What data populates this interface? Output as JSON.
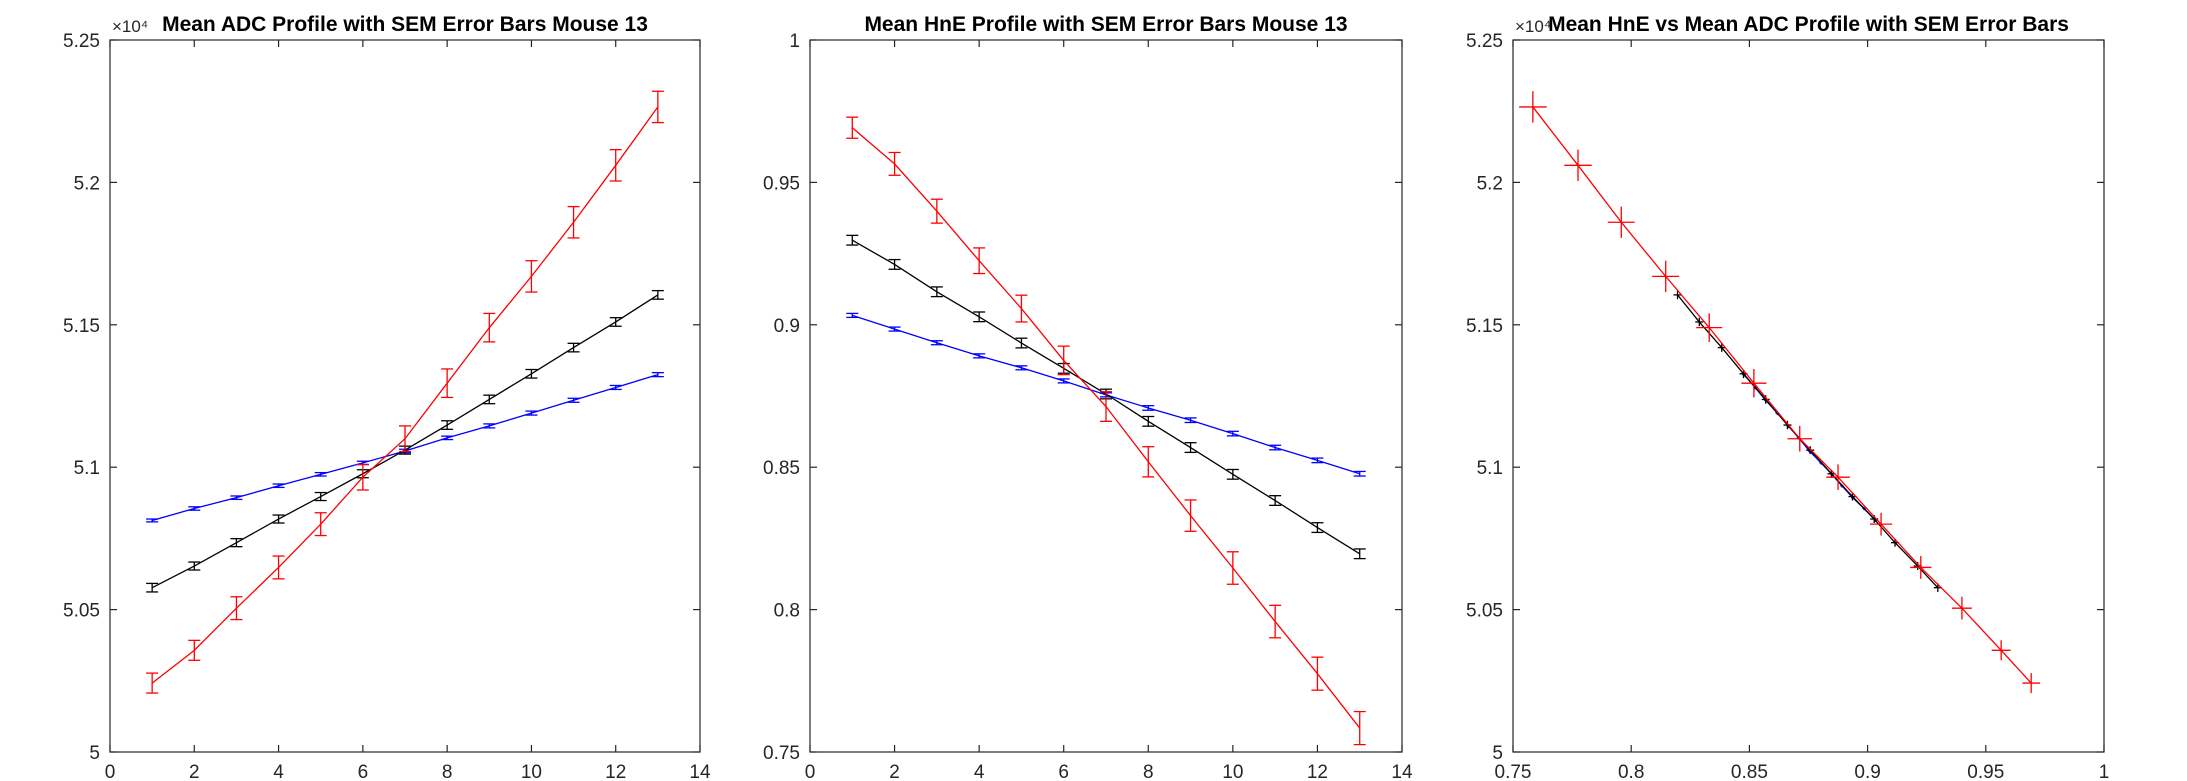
{
  "colors": {
    "blue": "#0000ff",
    "black": "#000000",
    "red": "#ff0000",
    "axis": "#262626"
  },
  "chart_data": [
    {
      "type": "line",
      "title": "Mean ADC Profile with SEM Error Bars Mouse 13",
      "xlim": [
        0,
        14
      ],
      "ylim": [
        50000,
        52500
      ],
      "xticks": [
        0,
        2,
        4,
        6,
        8,
        10,
        12,
        14
      ],
      "yticks": [
        50000,
        50500,
        51000,
        51500,
        52000,
        52500
      ],
      "x_tick_labels": [
        "0",
        "2",
        "4",
        "6",
        "8",
        "10",
        "12",
        "14"
      ],
      "y_tick_labels": [
        "5",
        "5.05",
        "5.1",
        "5.15",
        "5.2",
        "5.25"
      ],
      "y_exponent_label": "×10⁴",
      "grid": false,
      "marker": "errorbar",
      "series": [
        {
          "color": "blue",
          "x": [
            1,
            2,
            3,
            4,
            5,
            6,
            7,
            8,
            9,
            10,
            11,
            12,
            13
          ],
          "values": [
            50813,
            50855,
            50893,
            50935,
            50975,
            51015,
            51057,
            51103,
            51145,
            51190,
            51235,
            51280,
            51325
          ],
          "errors": [
            5,
            6,
            6,
            6,
            6,
            6,
            6,
            6,
            7,
            7,
            7,
            7,
            7
          ]
        },
        {
          "color": "black",
          "x": [
            1,
            2,
            3,
            4,
            5,
            6,
            7,
            8,
            9,
            10,
            11,
            12,
            13
          ],
          "values": [
            50577,
            50653,
            50735,
            50818,
            50897,
            50977,
            51060,
            51148,
            51238,
            51328,
            51420,
            51510,
            51605
          ],
          "errors": [
            15,
            14,
            14,
            14,
            14,
            14,
            14,
            15,
            15,
            15,
            15,
            15,
            15
          ]
        },
        {
          "color": "red",
          "x": [
            1,
            2,
            3,
            4,
            5,
            6,
            7,
            8,
            9,
            10,
            11,
            12,
            13
          ],
          "values": [
            50242,
            50357,
            50505,
            50648,
            50800,
            50965,
            51100,
            51295,
            51490,
            51670,
            51860,
            52060,
            52265
          ],
          "errors": [
            35,
            35,
            40,
            40,
            40,
            45,
            45,
            50,
            50,
            55,
            55,
            55,
            55
          ]
        }
      ]
    },
    {
      "type": "line",
      "title": "Mean HnE Profile with SEM Error Bars Mouse 13",
      "xlim": [
        0,
        14
      ],
      "ylim": [
        0.75,
        1
      ],
      "xticks": [
        0,
        2,
        4,
        6,
        8,
        10,
        12,
        14
      ],
      "yticks": [
        0.75,
        0.8,
        0.85,
        0.9,
        0.95,
        1
      ],
      "x_tick_labels": [
        "0",
        "2",
        "4",
        "6",
        "8",
        "10",
        "12",
        "14"
      ],
      "y_tick_labels": [
        "0.75",
        "0.8",
        "0.85",
        "0.9",
        "0.95",
        "1"
      ],
      "grid": false,
      "marker": "errorbar",
      "series": [
        {
          "color": "blue",
          "x": [
            1,
            2,
            3,
            4,
            5,
            6,
            7,
            8,
            9,
            10,
            11,
            12,
            13
          ],
          "values": [
            0.9033,
            0.8985,
            0.8937,
            0.8891,
            0.8849,
            0.8803,
            0.8754,
            0.8708,
            0.8665,
            0.8618,
            0.8569,
            0.8524,
            0.8477
          ],
          "errors": [
            0.0007,
            0.0007,
            0.0007,
            0.0007,
            0.0007,
            0.0007,
            0.0007,
            0.0008,
            0.0008,
            0.0008,
            0.0008,
            0.0008,
            0.0008
          ]
        },
        {
          "color": "black",
          "x": [
            1,
            2,
            3,
            4,
            5,
            6,
            7,
            8,
            9,
            10,
            11,
            12,
            13
          ],
          "values": [
            0.9297,
            0.9212,
            0.9116,
            0.9028,
            0.8936,
            0.8847,
            0.8757,
            0.8661,
            0.8569,
            0.8475,
            0.8383,
            0.8288,
            0.8196
          ],
          "errors": [
            0.0017,
            0.0017,
            0.0017,
            0.0017,
            0.0017,
            0.0017,
            0.0017,
            0.0017,
            0.0017,
            0.0017,
            0.0017,
            0.0017,
            0.0017
          ]
        },
        {
          "color": "red",
          "x": [
            1,
            2,
            3,
            4,
            5,
            6,
            7,
            8,
            9,
            10,
            11,
            12,
            13
          ],
          "values": [
            0.9692,
            0.9565,
            0.9399,
            0.9225,
            0.9057,
            0.8875,
            0.8713,
            0.8519,
            0.833,
            0.8146,
            0.7958,
            0.7775,
            0.7584
          ],
          "errors": [
            0.0037,
            0.004,
            0.0042,
            0.0045,
            0.0047,
            0.005,
            0.0052,
            0.0053,
            0.0055,
            0.0057,
            0.0057,
            0.0058,
            0.0058
          ]
        }
      ]
    },
    {
      "type": "scatter",
      "title": "Mean HnE vs Mean ADC Profile with SEM Error Bars",
      "xlim": [
        0.75,
        1
      ],
      "ylim": [
        50000,
        52500
      ],
      "xticks": [
        0.75,
        0.8,
        0.85,
        0.9,
        0.95,
        1
      ],
      "yticks": [
        50000,
        50500,
        51000,
        51500,
        52000,
        52500
      ],
      "x_tick_labels": [
        "0.75",
        "0.8",
        "0.85",
        "0.9",
        "0.95",
        "1"
      ],
      "y_tick_labels": [
        "5",
        "5.05",
        "5.1",
        "5.15",
        "5.2",
        "5.25"
      ],
      "y_exponent_label": "×10⁴",
      "grid": false,
      "marker": "cross-errorbar",
      "series": [
        {
          "color": "blue",
          "x": [
            0.9033,
            0.8985,
            0.8937,
            0.8891,
            0.8849,
            0.8803,
            0.8754,
            0.8708,
            0.8665,
            0.8618,
            0.8569,
            0.8524,
            0.8477
          ],
          "values": [
            50813,
            50855,
            50893,
            50935,
            50975,
            51015,
            51057,
            51103,
            51145,
            51190,
            51235,
            51280,
            51325
          ],
          "xerr": [
            0.0007,
            0.0007,
            0.0007,
            0.0007,
            0.0007,
            0.0007,
            0.0007,
            0.0008,
            0.0008,
            0.0008,
            0.0008,
            0.0008,
            0.0008
          ],
          "errors": [
            5,
            6,
            6,
            6,
            6,
            6,
            6,
            6,
            7,
            7,
            7,
            7,
            7
          ]
        },
        {
          "color": "black",
          "x": [
            0.9297,
            0.9212,
            0.9116,
            0.9028,
            0.8936,
            0.8847,
            0.8757,
            0.8661,
            0.8569,
            0.8475,
            0.8383,
            0.8288,
            0.8196
          ],
          "values": [
            50577,
            50653,
            50735,
            50818,
            50897,
            50977,
            51060,
            51148,
            51238,
            51328,
            51420,
            51510,
            51605
          ],
          "xerr": [
            0.0017,
            0.0017,
            0.0017,
            0.0017,
            0.0017,
            0.0017,
            0.0017,
            0.0017,
            0.0017,
            0.0017,
            0.0017,
            0.0017,
            0.0017
          ],
          "errors": [
            15,
            14,
            14,
            14,
            14,
            14,
            14,
            15,
            15,
            15,
            15,
            15,
            15
          ]
        },
        {
          "color": "red",
          "x": [
            0.9692,
            0.9565,
            0.9399,
            0.9225,
            0.9057,
            0.8875,
            0.8713,
            0.8519,
            0.833,
            0.8146,
            0.7958,
            0.7775,
            0.7584
          ],
          "values": [
            50242,
            50357,
            50505,
            50648,
            50800,
            50965,
            51100,
            51295,
            51490,
            51670,
            51860,
            52060,
            52265
          ],
          "xerr": [
            0.0037,
            0.004,
            0.0042,
            0.0045,
            0.0047,
            0.005,
            0.0052,
            0.0053,
            0.0055,
            0.0057,
            0.0057,
            0.0058,
            0.0058
          ],
          "errors": [
            35,
            35,
            40,
            40,
            40,
            45,
            45,
            50,
            50,
            55,
            55,
            55,
            55
          ]
        }
      ]
    }
  ]
}
